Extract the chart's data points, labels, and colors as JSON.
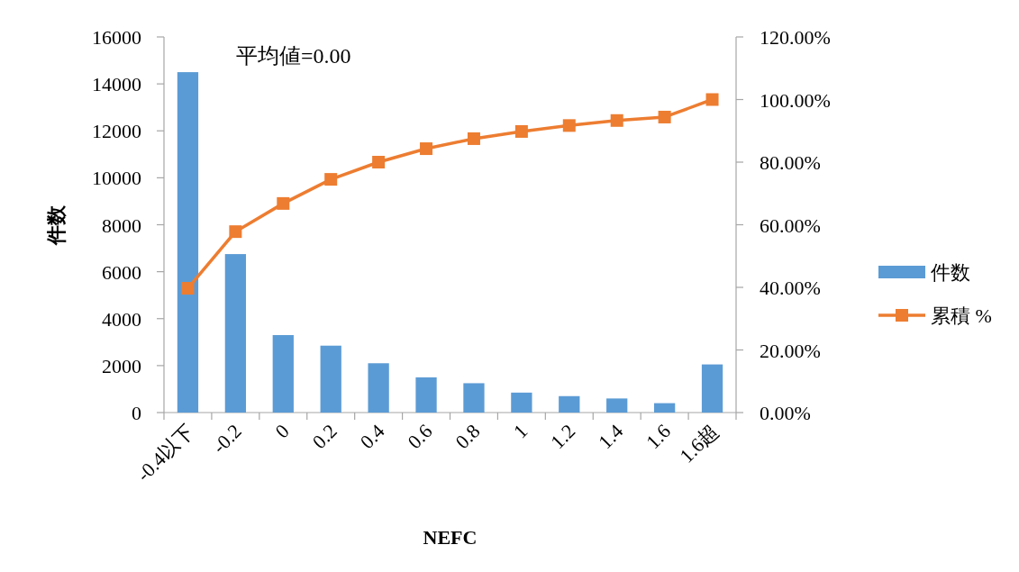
{
  "chart_data": {
    "type": "bar",
    "categories": [
      "-0.4以下",
      "-0.2",
      "0",
      "0.2",
      "0.4",
      "0.6",
      "0.8",
      "1",
      "1.2",
      "1.4",
      "1.6",
      "1.6超"
    ],
    "series": [
      {
        "name": "件数",
        "color": "#5b9bd5",
        "values": [
          14500,
          6750,
          3300,
          2850,
          2100,
          1500,
          1250,
          850,
          700,
          600,
          400,
          2050
        ]
      },
      {
        "name": "累積 %",
        "type": "line",
        "axis": "y2",
        "color": "#ed7d31",
        "marker": "square",
        "values": [
          39.7,
          57.8,
          66.8,
          74.5,
          80.0,
          84.3,
          87.5,
          89.8,
          91.7,
          93.3,
          94.4,
          100
        ]
      }
    ],
    "xlabel": "NEFC",
    "ylabel": "件数",
    "ylim": [
      0,
      16000
    ],
    "yticks": [
      0,
      2000,
      4000,
      6000,
      8000,
      10000,
      12000,
      14000,
      16000
    ],
    "y2lim": [
      0,
      120
    ],
    "y2ticks": [
      {
        "value": 0,
        "label": "0.00%"
      },
      {
        "value": 20,
        "label": "20.00%"
      },
      {
        "value": 40,
        "label": "40.00%"
      },
      {
        "value": 60,
        "label": "60.00%"
      },
      {
        "value": 80,
        "label": "80.00%"
      },
      {
        "value": 100,
        "label": "100.00%"
      },
      {
        "value": 120,
        "label": "120.00%"
      }
    ],
    "annotations": [
      "平均値=0.00"
    ],
    "legend": "right",
    "grid": false
  }
}
